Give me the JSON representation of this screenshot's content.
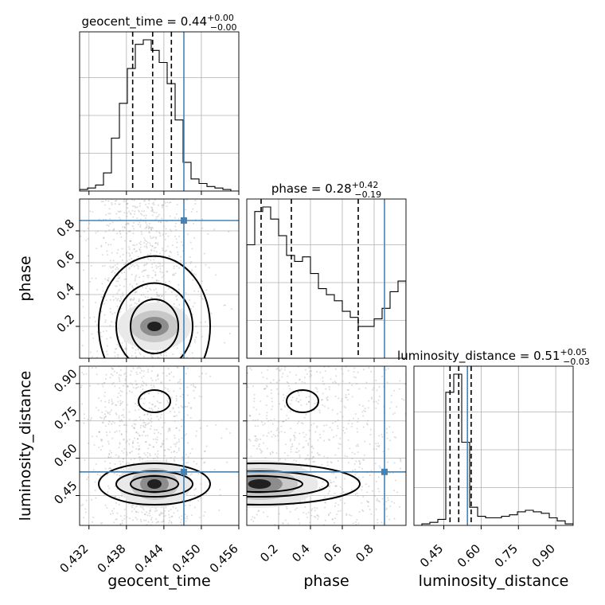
{
  "chart_data": {
    "type": "corner",
    "parameters": [
      "geocent_time",
      "phase",
      "luminosity_distance"
    ],
    "truth_color": "#4682b4",
    "truths": {
      "geocent_time": 0.4472,
      "phase": 0.865,
      "luminosity_distance": 0.545
    },
    "ranges": {
      "geocent_time": [
        0.4305,
        0.456
      ],
      "phase": [
        0.0,
        1.0
      ],
      "luminosity_distance": [
        0.33,
        0.97
      ]
    },
    "ticks": {
      "geocent_time": [
        "0.432",
        "0.438",
        "0.444",
        "0.450",
        "0.456"
      ],
      "phase": [
        "0.2",
        "0.4",
        "0.6",
        "0.8"
      ],
      "luminosity_distance": [
        "0.45",
        "0.60",
        "0.75",
        "0.90"
      ]
    },
    "titles": {
      "geocent_time": {
        "main": "geocent_time = 0.44",
        "sup": "+0.00",
        "sub": "−0.00"
      },
      "phase": {
        "main": "phase = 0.28",
        "sup": "+0.42",
        "sub": "−0.19"
      },
      "luminosity_distance": {
        "main": "luminosity_distance = 0.51",
        "sup": "+0.05",
        "sub": "−0.03"
      }
    },
    "quantiles": {
      "geocent_time": [
        0.439,
        0.4422,
        0.4452
      ],
      "phase": [
        0.09,
        0.28,
        0.7
      ],
      "luminosity_distance": [
        0.475,
        0.51,
        0.56
      ]
    },
    "histograms": {
      "geocent_time": [
        0.01,
        0.02,
        0.04,
        0.12,
        0.35,
        0.58,
        0.81,
        0.97,
        1.0,
        0.93,
        0.85,
        0.71,
        0.47,
        0.19,
        0.08,
        0.05,
        0.03,
        0.02,
        0.01,
        0.0
      ],
      "phase": [
        0.75,
        0.97,
        1.0,
        0.92,
        0.81,
        0.68,
        0.64,
        0.67,
        0.56,
        0.46,
        0.42,
        0.38,
        0.31,
        0.27,
        0.21,
        0.21,
        0.26,
        0.33,
        0.44,
        0.51
      ],
      "luminosity_distance": [
        0.0,
        0.01,
        0.02,
        0.04,
        0.88,
        1.0,
        0.55,
        0.12,
        0.06,
        0.05,
        0.05,
        0.06,
        0.07,
        0.09,
        0.1,
        0.09,
        0.08,
        0.05,
        0.03,
        0.01
      ]
    }
  }
}
